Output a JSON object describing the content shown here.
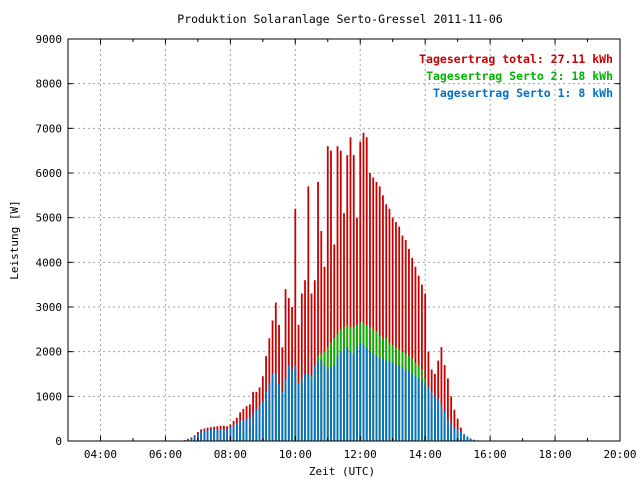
{
  "chart_data": {
    "type": "bar",
    "title": "Produktion Solaranlage Serto-Gressel 2011-11-06",
    "xlabel": "Zeit (UTC)",
    "ylabel": "Leistung [W]",
    "xlim": [
      3,
      20
    ],
    "ylim": [
      0,
      9000
    ],
    "x_ticks": [
      {
        "value": 4,
        "label": "04:00"
      },
      {
        "value": 6,
        "label": "06:00"
      },
      {
        "value": 8,
        "label": "08:00"
      },
      {
        "value": 10,
        "label": "10:00"
      },
      {
        "value": 12,
        "label": "12:00"
      },
      {
        "value": 14,
        "label": "14:00"
      },
      {
        "value": 16,
        "label": "16:00"
      },
      {
        "value": 18,
        "label": "18:00"
      },
      {
        "value": 20,
        "label": "20:00"
      }
    ],
    "y_ticks": [
      {
        "value": 0,
        "label": "0"
      },
      {
        "value": 1000,
        "label": "1000"
      },
      {
        "value": 2000,
        "label": "2000"
      },
      {
        "value": 3000,
        "label": "3000"
      },
      {
        "value": 4000,
        "label": "4000"
      },
      {
        "value": 5000,
        "label": "5000"
      },
      {
        "value": 6000,
        "label": "6000"
      },
      {
        "value": 7000,
        "label": "7000"
      },
      {
        "value": 8000,
        "label": "8000"
      },
      {
        "value": 9000,
        "label": "9000"
      }
    ],
    "grid": true,
    "legend": [
      {
        "text": "Tagesertrag total: 27.11 kWh",
        "color": "#c80000"
      },
      {
        "text": "Tagesertrag Serto 2: 18 kWh",
        "color": "#00b400"
      },
      {
        "text": "Tagesertrag Serto 1: 8 kWh",
        "color": "#0073c8"
      }
    ],
    "legend_position": "top-right",
    "series_colors": {
      "total": "#c80000",
      "serto2": "#00b400",
      "serto1": "#0073c8"
    },
    "x": [
      6.6,
      6.7,
      6.8,
      6.9,
      7.0,
      7.1,
      7.2,
      7.3,
      7.4,
      7.5,
      7.6,
      7.7,
      7.8,
      7.9,
      8.0,
      8.1,
      8.2,
      8.3,
      8.4,
      8.5,
      8.6,
      8.7,
      8.8,
      8.9,
      9.0,
      9.1,
      9.2,
      9.3,
      9.4,
      9.5,
      9.6,
      9.7,
      9.8,
      9.9,
      10.0,
      10.1,
      10.2,
      10.3,
      10.4,
      10.5,
      10.6,
      10.7,
      10.8,
      10.9,
      11.0,
      11.1,
      11.2,
      11.3,
      11.4,
      11.5,
      11.6,
      11.7,
      11.8,
      11.9,
      12.0,
      12.1,
      12.2,
      12.3,
      12.4,
      12.5,
      12.6,
      12.7,
      12.8,
      12.9,
      13.0,
      13.1,
      13.2,
      13.3,
      13.4,
      13.5,
      13.6,
      13.7,
      13.8,
      13.9,
      14.0,
      14.1,
      14.2,
      14.3,
      14.4,
      14.5,
      14.6,
      14.7,
      14.8,
      14.9,
      15.0,
      15.1,
      15.2,
      15.3,
      15.4,
      15.5,
      15.6,
      15.7,
      15.8
    ],
    "series": [
      {
        "key": "serto1",
        "values": [
          10,
          30,
          60,
          100,
          150,
          200,
          230,
          240,
          250,
          255,
          260,
          265,
          270,
          260,
          300,
          350,
          400,
          450,
          480,
          500,
          520,
          600,
          700,
          800,
          900,
          1100,
          1300,
          1500,
          1500,
          1300,
          1100,
          1400,
          1700,
          1600,
          1700,
          1300,
          1400,
          1500,
          1500,
          1400,
          1700,
          1800,
          1800,
          1700,
          1600,
          1650,
          1700,
          1900,
          2000,
          2050,
          2100,
          2000,
          1950,
          2100,
          2200,
          2150,
          2100,
          2000,
          1950,
          1900,
          1850,
          1850,
          1800,
          1800,
          1750,
          1700,
          1700,
          1650,
          1600,
          1550,
          1500,
          1450,
          1400,
          1350,
          1300,
          1200,
          1100,
          1000,
          950,
          800,
          650,
          500,
          400,
          300,
          250,
          200,
          150,
          100,
          60,
          30,
          15,
          8,
          4
        ]
      },
      {
        "key": "serto2",
        "values": [
          0,
          5,
          10,
          20,
          30,
          40,
          40,
          40,
          40,
          45,
          50,
          55,
          60,
          60,
          60,
          80,
          100,
          150,
          200,
          250,
          280,
          300,
          350,
          400,
          500,
          700,
          900,
          1100,
          1300,
          1100,
          900,
          1300,
          1600,
          1500,
          1600,
          1200,
          1300,
          1400,
          1500,
          1450,
          1600,
          1900,
          1950,
          2000,
          2100,
          2200,
          2300,
          2400,
          2500,
          2550,
          2600,
          2550,
          2550,
          2600,
          2650,
          2650,
          2600,
          2550,
          2500,
          2450,
          2350,
          2300,
          2300,
          2200,
          2150,
          2100,
          2050,
          2000,
          1950,
          1900,
          1850,
          1750,
          1700,
          1600,
          1400,
          1100,
          800,
          600,
          500,
          400,
          300,
          250,
          180,
          120,
          80,
          50,
          30,
          20,
          10,
          5,
          2,
          1,
          0
        ]
      },
      {
        "key": "total",
        "values": [
          20,
          50,
          80,
          130,
          200,
          260,
          280,
          300,
          310,
          320,
          330,
          340,
          340,
          330,
          370,
          450,
          520,
          640,
          720,
          780,
          820,
          1100,
          1100,
          1200,
          1450,
          1900,
          2300,
          2700,
          3100,
          2600,
          2100,
          3400,
          3200,
          3000,
          5200,
          2600,
          3300,
          3600,
          5700,
          3300,
          3600,
          5800,
          4700,
          3900,
          6600,
          6500,
          4400,
          6600,
          6500,
          5100,
          6400,
          6800,
          6400,
          5000,
          6700,
          6900,
          6800,
          6000,
          5900,
          5800,
          5700,
          5500,
          5300,
          5200,
          5000,
          4900,
          4800,
          4600,
          4500,
          4300,
          4100,
          3900,
          3700,
          3500,
          3300,
          2000,
          1600,
          1500,
          1800,
          2100,
          1700,
          1400,
          1000,
          700,
          500,
          300,
          150,
          80,
          40,
          20,
          10,
          5,
          2
        ]
      }
    ]
  }
}
